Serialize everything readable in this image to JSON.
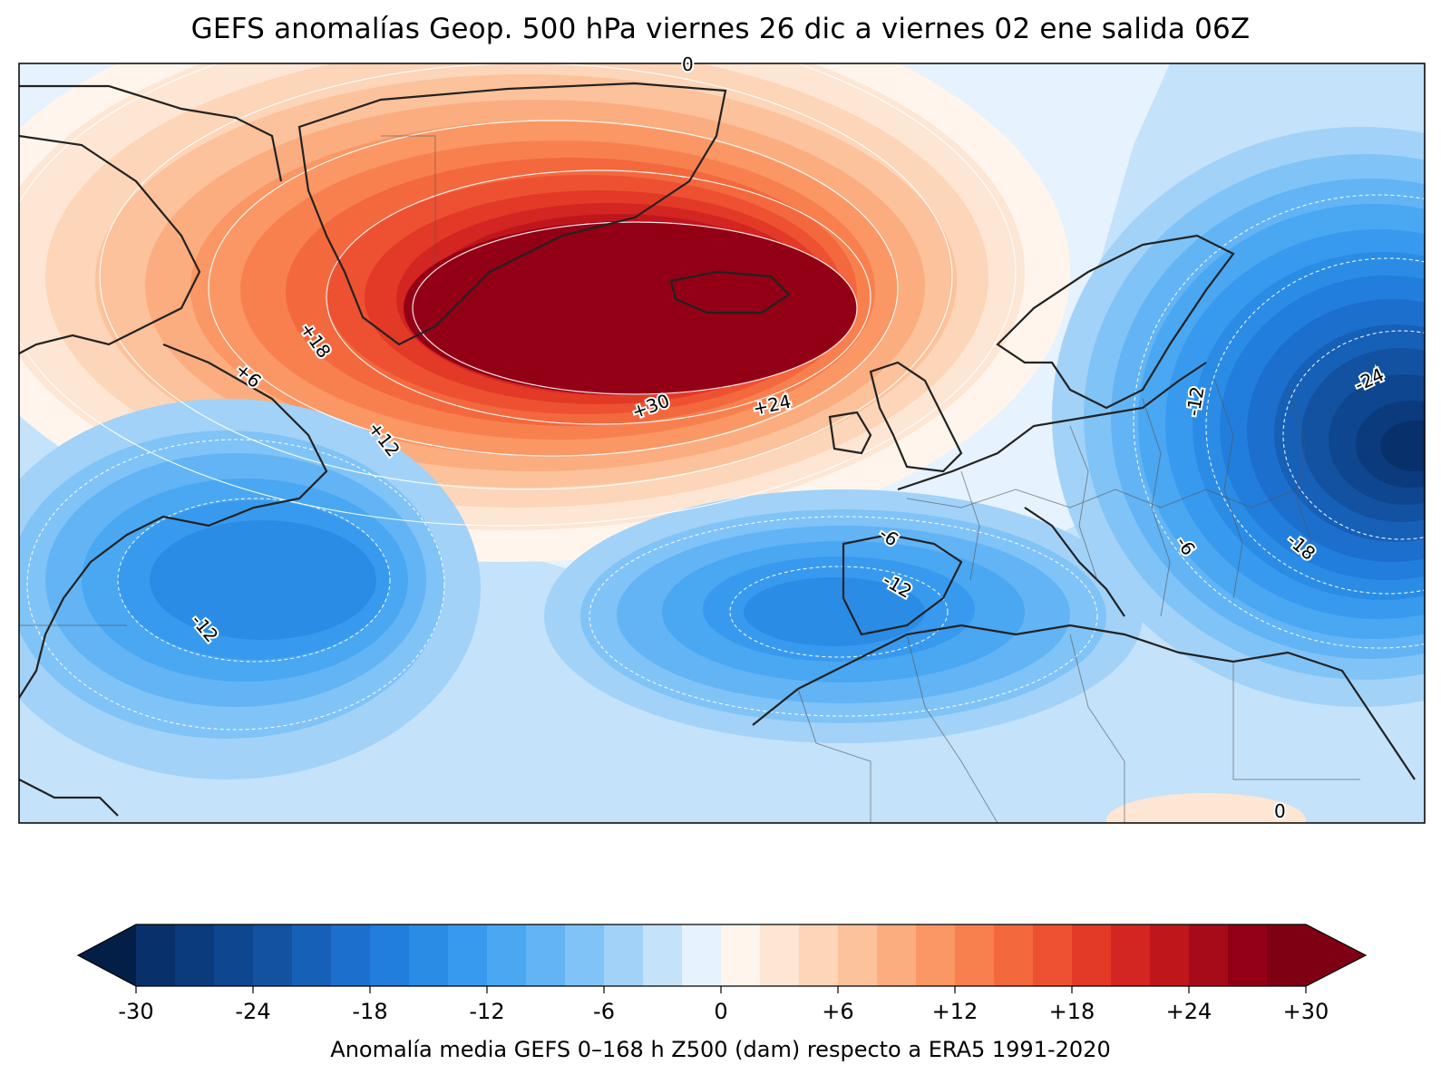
{
  "title": "GEFS anomalías Geop. 500 hPa viernes 26 dic a viernes 02 ene salida 06Z",
  "colorbar": {
    "label": "Anomalía media GEFS 0–168 h Z500 (dam) respecto a ERA5 1991-2020",
    "ticks": [
      "-30",
      "-24",
      "-18",
      "-12",
      "-6",
      "0",
      "+6",
      "+12",
      "+18",
      "+24",
      "+30"
    ],
    "min": -30,
    "max": 30,
    "step": 2,
    "colors": [
      "#08306b",
      "#0b3b7d",
      "#0e468f",
      "#1252a1",
      "#1660b8",
      "#1c6fcd",
      "#227edc",
      "#2b8ce6",
      "#389aef",
      "#4aa7f2",
      "#62b4f5",
      "#80c3f7",
      "#a2d2f8",
      "#c4e2fa",
      "#e6f2fd",
      "#fff5ec",
      "#fee6d4",
      "#fdd5b8",
      "#fcc29b",
      "#fbad80",
      "#fa9764",
      "#f8804f",
      "#f4683e",
      "#ee5131",
      "#e23a27",
      "#d32521",
      "#bf161c",
      "#a70b1a",
      "#930016",
      "#7f0012"
    ],
    "under_color": "#041f47",
    "over_color": "#7f0012"
  },
  "map": {
    "contour_labels": [
      "0",
      "+18",
      "+6",
      "+12",
      "+30",
      "+24",
      "-6",
      "-12",
      "-12",
      "-12",
      "-6",
      "-18",
      "-24",
      "0"
    ]
  }
}
